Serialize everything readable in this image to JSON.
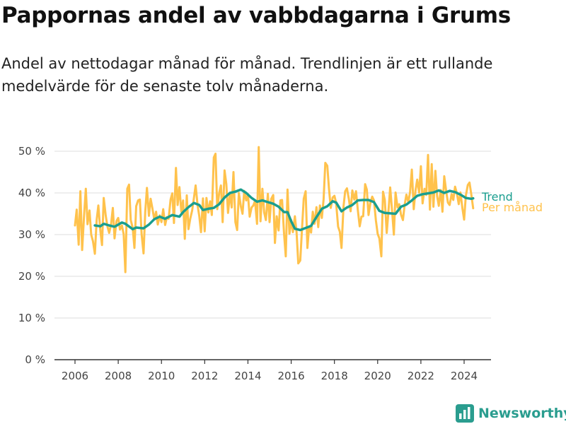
{
  "title": "Pappornas andel av vabbdagarna i Grums",
  "subtitle": "Andel av nettodagar månad för månad. Trendlinjen är ett rullande medelvärde för de senaste tolv månaderna.",
  "brand": {
    "name": "Newsworthy",
    "logo_icon": "bar-chart-logo-icon"
  },
  "colors": {
    "monthly": "#FFC24C",
    "trend": "#1A9E8F",
    "axis": "#333333",
    "grid": "#DDDDDD"
  },
  "chart_data": {
    "type": "line",
    "title": "",
    "xlabel": "",
    "ylabel": "",
    "xlim": [
      2006.0,
      2024.58
    ],
    "ylim": [
      0,
      50
    ],
    "grid": true,
    "x_ticks": [
      2006,
      2008,
      2010,
      2012,
      2014,
      2016,
      2018,
      2020,
      2022,
      2024
    ],
    "x_tick_labels": [
      "2006",
      "2008",
      "2010",
      "2012",
      "2014",
      "2016",
      "2018",
      "2020",
      "2022",
      "2024"
    ],
    "y_ticks": [
      0,
      10,
      20,
      30,
      40,
      50
    ],
    "y_tick_labels": [
      "0 %",
      "10 %",
      "20 %",
      "30 %",
      "40 %",
      "50 %"
    ],
    "legend": "right-end-labels",
    "series": [
      {
        "name": "Per månad",
        "color": "#FFC24C",
        "x": [
          2006.0,
          2006.08,
          2006.17,
          2006.25,
          2006.33,
          2006.42,
          2006.5,
          2006.58,
          2006.67,
          2006.75,
          2006.83,
          2006.92,
          2007.0,
          2007.08,
          2007.17,
          2007.25,
          2007.33,
          2007.42,
          2007.5,
          2007.58,
          2007.67,
          2007.75,
          2007.83,
          2007.92,
          2008.0,
          2008.08,
          2008.17,
          2008.25,
          2008.33,
          2008.42,
          2008.5,
          2008.58,
          2008.67,
          2008.75,
          2008.83,
          2008.92,
          2009.0,
          2009.08,
          2009.17,
          2009.25,
          2009.33,
          2009.42,
          2009.5,
          2009.58,
          2009.67,
          2009.75,
          2009.83,
          2009.92,
          2010.0,
          2010.08,
          2010.17,
          2010.25,
          2010.33,
          2010.42,
          2010.5,
          2010.58,
          2010.67,
          2010.75,
          2010.83,
          2010.92,
          2011.0,
          2011.08,
          2011.17,
          2011.25,
          2011.33,
          2011.42,
          2011.5,
          2011.58,
          2011.67,
          2011.75,
          2011.83,
          2011.92,
          2012.0,
          2012.08,
          2012.17,
          2012.25,
          2012.33,
          2012.42,
          2012.5,
          2012.58,
          2012.67,
          2012.75,
          2012.83,
          2012.92,
          2013.0,
          2013.08,
          2013.17,
          2013.25,
          2013.33,
          2013.42,
          2013.5,
          2013.58,
          2013.67,
          2013.75,
          2013.83,
          2013.92,
          2014.0,
          2014.08,
          2014.17,
          2014.25,
          2014.33,
          2014.42,
          2014.5,
          2014.58,
          2014.67,
          2014.75,
          2014.83,
          2014.92,
          2015.0,
          2015.08,
          2015.17,
          2015.25,
          2015.33,
          2015.42,
          2015.5,
          2015.58,
          2015.67,
          2015.75,
          2015.83,
          2015.92,
          2016.0,
          2016.08,
          2016.17,
          2016.25,
          2016.33,
          2016.42,
          2016.5,
          2016.58,
          2016.67,
          2016.75,
          2016.83,
          2016.92,
          2017.0,
          2017.08,
          2017.17,
          2017.25,
          2017.33,
          2017.42,
          2017.5,
          2017.58,
          2017.67,
          2017.75,
          2017.83,
          2017.92,
          2018.0,
          2018.08,
          2018.17,
          2018.25,
          2018.33,
          2018.42,
          2018.5,
          2018.58,
          2018.67,
          2018.75,
          2018.83,
          2018.92,
          2019.0,
          2019.08,
          2019.17,
          2019.25,
          2019.33,
          2019.42,
          2019.5,
          2019.58,
          2019.67,
          2019.75,
          2019.83,
          2019.92,
          2020.0,
          2020.08,
          2020.17,
          2020.25,
          2020.33,
          2020.42,
          2020.5,
          2020.58,
          2020.67,
          2020.75,
          2020.83,
          2020.92,
          2021.0,
          2021.08,
          2021.17,
          2021.25,
          2021.33,
          2021.42,
          2021.5,
          2021.58,
          2021.67,
          2021.75,
          2021.83,
          2021.92,
          2022.0,
          2022.08,
          2022.17,
          2022.25,
          2022.33,
          2022.42,
          2022.5,
          2022.58,
          2022.67,
          2022.75,
          2022.83,
          2022.92,
          2023.0,
          2023.08,
          2023.17,
          2023.25,
          2023.33,
          2023.42,
          2023.5,
          2023.58,
          2023.67,
          2023.75,
          2023.83,
          2023.92,
          2024.0,
          2024.08,
          2024.17,
          2024.25,
          2024.33,
          2024.42
        ],
        "values": [
          32.2,
          36.0,
          27.6,
          40.4,
          26.3,
          34.5,
          41.0,
          32.5,
          35.8,
          30.0,
          28.4,
          25.4,
          33.5,
          37.0,
          31.0,
          27.5,
          38.8,
          34.6,
          32.0,
          30.4,
          32.5,
          36.4,
          29.1,
          33.3,
          34.0,
          31.2,
          32.2,
          30.1,
          21.0,
          41.0,
          42.0,
          33.5,
          31.6,
          26.8,
          36.8,
          38.2,
          38.4,
          30.2,
          25.5,
          35.5,
          41.2,
          34.5,
          38.6,
          36.3,
          33.6,
          35.5,
          32.4,
          34.6,
          33.0,
          36.1,
          32.3,
          34.2,
          33.8,
          38.4,
          39.9,
          32.8,
          46.0,
          37.1,
          41.4,
          35.5,
          38.2,
          29.0,
          39.4,
          31.3,
          33.8,
          35.8,
          38.8,
          41.8,
          37.0,
          34.4,
          30.6,
          38.7,
          30.8,
          38.8,
          35.3,
          38.0,
          34.7,
          48.5,
          49.4,
          36.1,
          40.0,
          41.8,
          33.0,
          45.4,
          42.1,
          35.2,
          40.0,
          36.5,
          45.0,
          33.0,
          31.1,
          40.0,
          36.8,
          35.0,
          40.5,
          38.2,
          39.7,
          34.3,
          36.5,
          37.0,
          38.1,
          32.6,
          51.0,
          33.2,
          41.0,
          35.3,
          33.5,
          39.8,
          33.0,
          38.6,
          39.5,
          28.0,
          34.4,
          31.0,
          38.2,
          38.3,
          30.2,
          24.8,
          40.8,
          30.2,
          33.5,
          30.6,
          34.4,
          30.5,
          23.1,
          23.8,
          31.2,
          38.6,
          40.4,
          26.8,
          31.9,
          30.5,
          35.5,
          32.6,
          36.6,
          31.8,
          37.0,
          34.0,
          38.5,
          47.2,
          46.5,
          41.0,
          36.4,
          38.9,
          39.3,
          37.6,
          31.9,
          30.7,
          26.8,
          36.7,
          40.4,
          41.1,
          38.5,
          35.6,
          40.6,
          38.4,
          40.4,
          36.0,
          32.0,
          34.3,
          34.4,
          42.1,
          40.8,
          34.7,
          37.8,
          39.1,
          38.2,
          33.4,
          30.2,
          29.1,
          24.8,
          40.3,
          38.3,
          30.4,
          35.7,
          41.3,
          35.4,
          30.0,
          40.1,
          36.5,
          37.3,
          34.8,
          33.5,
          37.2,
          39.6,
          37.8,
          40.2,
          45.6,
          36.1,
          40.6,
          43.2,
          40.1,
          46.4,
          37.5,
          41.0,
          39.5,
          49.1,
          36.0,
          46.9,
          36.7,
          45.3,
          39.3,
          36.9,
          40.7,
          35.5,
          44.0,
          40.5,
          37.7,
          37.1,
          39.7,
          38.3,
          41.5,
          39.8,
          37.3,
          40.1,
          36.3,
          33.6,
          39.3,
          41.9,
          42.5,
          39.7,
          36.3
        ]
      },
      {
        "name": "Trend",
        "color": "#1A9E8F",
        "x": [
          2006.92,
          2007.17,
          2007.33,
          2007.58,
          2007.83,
          2008.17,
          2008.33,
          2008.67,
          2008.83,
          2009.17,
          2009.42,
          2009.67,
          2009.92,
          2010.17,
          2010.5,
          2010.83,
          2011.0,
          2011.25,
          2011.5,
          2011.75,
          2011.92,
          2012.17,
          2012.42,
          2012.67,
          2012.92,
          2013.17,
          2013.42,
          2013.67,
          2013.92,
          2014.17,
          2014.42,
          2014.67,
          2014.92,
          2015.17,
          2015.42,
          2015.67,
          2015.83,
          2016.0,
          2016.17,
          2016.42,
          2016.67,
          2016.92,
          2017.17,
          2017.42,
          2017.67,
          2017.92,
          2018.08,
          2018.33,
          2018.58,
          2018.83,
          2019.08,
          2019.33,
          2019.58,
          2019.83,
          2020.08,
          2020.33,
          2020.58,
          2020.83,
          2021.08,
          2021.33,
          2021.58,
          2021.83,
          2022.08,
          2022.33,
          2022.58,
          2022.83,
          2023.08,
          2023.33,
          2023.58,
          2023.83,
          2024.08,
          2024.33,
          2024.42
        ],
        "values": [
          32.2,
          32.0,
          32.6,
          32.2,
          31.9,
          32.9,
          32.6,
          31.3,
          31.7,
          31.5,
          32.4,
          33.7,
          34.3,
          33.8,
          34.7,
          34.3,
          35.4,
          36.6,
          37.6,
          37.1,
          35.9,
          36.2,
          36.4,
          37.3,
          38.9,
          40.0,
          40.3,
          40.8,
          40.0,
          38.8,
          37.9,
          38.2,
          37.8,
          37.4,
          36.7,
          35.4,
          35.4,
          33.2,
          31.4,
          31.1,
          31.6,
          32.1,
          34.2,
          36.2,
          36.8,
          38.0,
          37.7,
          35.6,
          36.5,
          37.1,
          38.2,
          38.3,
          38.3,
          37.8,
          35.7,
          35.2,
          35.1,
          35.0,
          36.7,
          37.2,
          38.2,
          39.3,
          39.7,
          39.9,
          40.1,
          40.6,
          40.0,
          40.5,
          40.2,
          39.6,
          38.8,
          38.6,
          38.7
        ]
      }
    ]
  }
}
